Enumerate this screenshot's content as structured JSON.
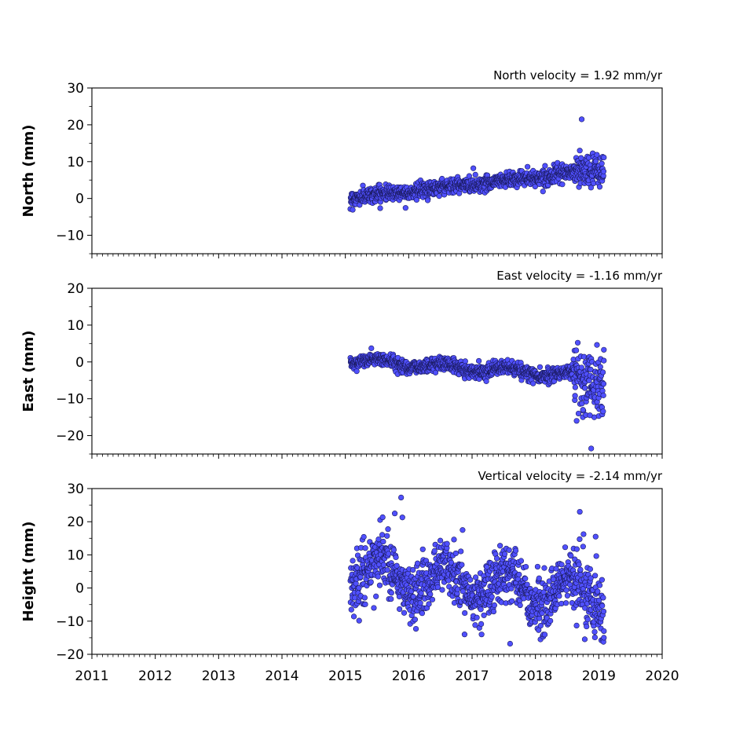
{
  "chart_data": {
    "type": "scatter",
    "x_axis": {
      "xlim": [
        2011,
        2020
      ],
      "tick_labels": [
        "2011",
        "2012",
        "2013",
        "2014",
        "2015",
        "2016",
        "2017",
        "2018",
        "2019",
        "2020"
      ],
      "data_range": [
        2015.08,
        2019.08
      ]
    },
    "marker_color": "#5050ff",
    "marker_edge_color": "#1a1a5e",
    "panels": [
      {
        "title": "North velocity = 1.92 mm/yr",
        "ylabel": "North (mm)",
        "ylim": [
          -15,
          30
        ],
        "yticks": [
          -10,
          0,
          10,
          20,
          30
        ],
        "ytick_labels": [
          "−10",
          "0",
          "10",
          "20",
          "30"
        ],
        "trend": {
          "slope": 1.92,
          "intercept": 0.2,
          "t0": 2015.08
        },
        "noise_sd": 1.0,
        "extra_noise_after": {
          "t": 2018.6,
          "sd": 2.0
        },
        "seasonal_amp": 0.3,
        "outliers": [
          {
            "x": 2018.73,
            "y": 21.5
          },
          {
            "x": 2018.7,
            "y": 13.0
          },
          {
            "x": 2018.72,
            "y": 11.0
          },
          {
            "x": 2017.02,
            "y": 8.2
          },
          {
            "x": 2016.3,
            "y": -0.5
          }
        ]
      },
      {
        "title": "East velocity = -1.16 mm/yr",
        "ylabel": "East (mm)",
        "ylim": [
          -25,
          20
        ],
        "yticks": [
          -20,
          -10,
          0,
          10,
          20
        ],
        "ytick_labels": [
          "−20",
          "−10",
          "0",
          "10",
          "20"
        ],
        "trend": {
          "slope": -1.16,
          "intercept": 0.5,
          "t0": 2015.08
        },
        "noise_sd": 0.9,
        "extra_noise_after": {
          "t": 2018.6,
          "sd": 4.0
        },
        "seasonal_amp": 0.8,
        "outliers": [
          {
            "x": 2018.88,
            "y": -23.5
          },
          {
            "x": 2018.65,
            "y": -16.0
          },
          {
            "x": 2018.68,
            "y": -14.0
          },
          {
            "x": 2018.75,
            "y": -13.0
          },
          {
            "x": 2018.86,
            "y": -14.5
          },
          {
            "x": 2019.08,
            "y": 3.3
          }
        ]
      },
      {
        "title": "Vertical velocity = -2.14 mm/yr",
        "ylabel": "Height (mm)",
        "ylim": [
          -20,
          30
        ],
        "yticks": [
          -20,
          -10,
          0,
          10,
          20,
          30
        ],
        "ytick_labels": [
          "−20",
          "−10",
          "0",
          "10",
          "20",
          "30"
        ],
        "trend": {
          "slope": -2.14,
          "intercept": 5.5,
          "t0": 2015.08
        },
        "noise_sd": 4.2,
        "extra_noise_after": {
          "t": 2018.6,
          "sd": 5.5
        },
        "seasonal_amp": 5.0,
        "outliers": [
          {
            "x": 2015.88,
            "y": 27.3
          },
          {
            "x": 2015.78,
            "y": 22.5
          },
          {
            "x": 2015.9,
            "y": 21.3
          },
          {
            "x": 2018.7,
            "y": 23.0
          },
          {
            "x": 2017.6,
            "y": -16.8
          },
          {
            "x": 2019.08,
            "y": -15.0
          },
          {
            "x": 2018.95,
            "y": 15.5
          },
          {
            "x": 2016.85,
            "y": 17.5
          },
          {
            "x": 2015.45,
            "y": -6.0
          },
          {
            "x": 2016.1,
            "y": -9.5
          },
          {
            "x": 2017.15,
            "y": -14.0
          }
        ]
      }
    ],
    "n_points": 1100,
    "seed": 12345
  }
}
